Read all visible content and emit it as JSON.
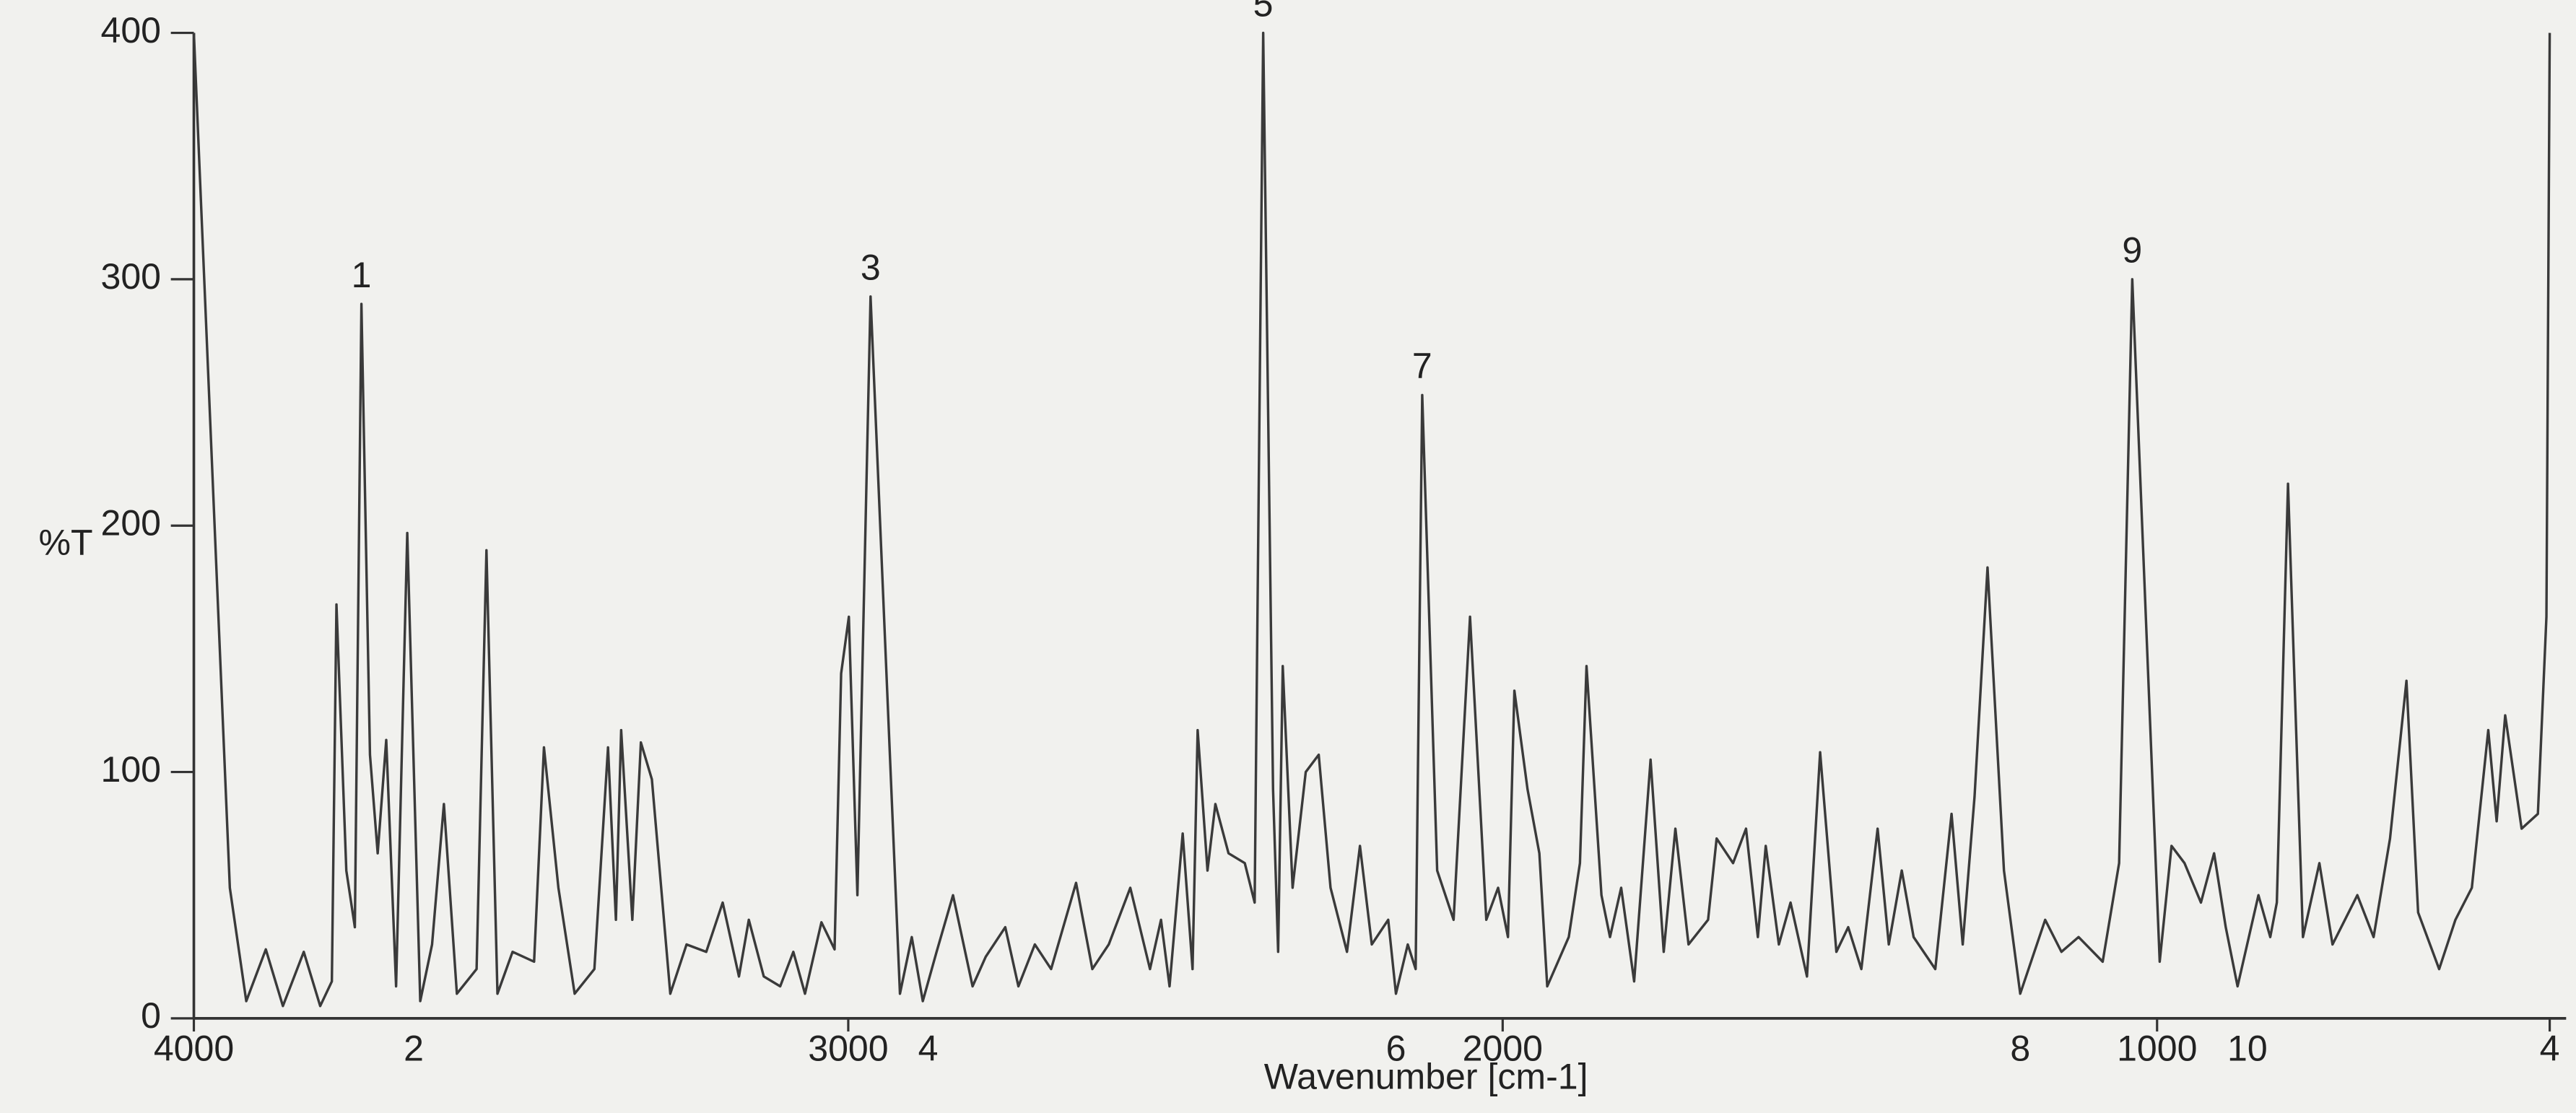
{
  "chart_data": {
    "type": "line",
    "ylabel": "%T",
    "xlabel": "Wavenumber [cm-1]",
    "xlim": [
      4000,
      400
    ],
    "ylim": [
      0,
      400
    ],
    "xticks": [
      4000,
      3000,
      2000,
      1000,
      {
        "value": 400,
        "label": "4"
      }
    ],
    "yticks": [
      0,
      100,
      200,
      300,
      400
    ],
    "color": "#3a3a3a",
    "x": [
      4000,
      3945,
      3920,
      3890,
      3864,
      3832,
      3807,
      3789,
      3782,
      3767,
      3754,
      3744,
      3731,
      3719,
      3706,
      3691,
      3674,
      3654,
      3636,
      3618,
      3598,
      3568,
      3553,
      3536,
      3513,
      3480,
      3465,
      3443,
      3418,
      3388,
      3367,
      3355,
      3347,
      3330,
      3317,
      3300,
      3272,
      3247,
      3217,
      3192,
      3167,
      3152,
      3129,
      3104,
      3084,
      3066,
      3041,
      3021,
      3011,
      2999,
      2986,
      2966,
      2921,
      2903,
      2886,
      2865,
      2840,
      2810,
      2790,
      2760,
      2740,
      2715,
      2690,
      2652,
      2627,
      2602,
      2569,
      2539,
      2522,
      2509,
      2489,
      2474,
      2466,
      2451,
      2439,
      2419,
      2394,
      2379,
      2366,
      2351,
      2343,
      2336,
      2321,
      2301,
      2281,
      2263,
      2238,
      2218,
      2200,
      2175,
      2163,
      2145,
      2133,
      2123,
      2100,
      2075,
      2050,
      2025,
      2007,
      1992,
      1982,
      1962,
      1944,
      1932,
      1899,
      1882,
      1872,
      1849,
      1836,
      1819,
      1799,
      1774,
      1754,
      1736,
      1716,
      1686,
      1673,
      1648,
      1628,
      1610,
      1598,
      1578,
      1560,
      1535,
      1515,
      1490,
      1472,
      1452,
      1427,
      1410,
      1390,
      1372,
      1339,
      1314,
      1297,
      1279,
      1259,
      1234,
      1209,
      1171,
      1146,
      1120,
      1083,
      1058,
      1038,
      996,
      978,
      958,
      933,
      913,
      895,
      877,
      845,
      827,
      817,
      800,
      777,
      752,
      732,
      694,
      669,
      644,
      619,
      601,
      569,
      544,
      519,
      494,
      481,
      468,
      443,
      418,
      405,
      400
    ],
    "values": [
      400,
      53,
      7,
      28,
      5,
      27,
      5,
      15,
      168,
      60,
      37,
      290,
      107,
      67,
      113,
      13,
      197,
      7,
      30,
      87,
      10,
      20,
      190,
      10,
      27,
      23,
      110,
      53,
      10,
      20,
      110,
      40,
      117,
      40,
      112,
      97,
      10,
      30,
      27,
      47,
      17,
      40,
      17,
      13,
      27,
      10,
      39,
      28,
      140,
      163,
      50,
      293,
      10,
      33,
      7,
      27,
      50,
      13,
      25,
      37,
      13,
      30,
      20,
      55,
      20,
      30,
      53,
      20,
      40,
      13,
      75,
      20,
      117,
      60,
      87,
      67,
      63,
      47,
      400,
      93,
      27,
      143,
      53,
      100,
      107,
      53,
      27,
      70,
      30,
      40,
      10,
      30,
      20,
      253,
      60,
      40,
      163,
      40,
      53,
      33,
      133,
      93,
      67,
      13,
      33,
      63,
      143,
      50,
      33,
      53,
      15,
      105,
      27,
      77,
      30,
      40,
      73,
      63,
      77,
      33,
      70,
      30,
      47,
      17,
      108,
      27,
      37,
      20,
      77,
      30,
      60,
      33,
      20,
      83,
      30,
      90,
      183,
      60,
      10,
      40,
      27,
      33,
      23,
      63,
      300,
      23,
      70,
      63,
      47,
      67,
      37,
      13,
      50,
      33,
      47,
      217,
      33,
      63,
      30,
      50,
      33,
      73,
      137,
      43,
      20,
      40,
      53,
      117,
      80,
      123,
      77,
      83,
      163,
      400
    ],
    "annotations": [
      {
        "text": "1",
        "x": 3744,
        "y": 290
      },
      {
        "text": "2",
        "x": 3664,
        "y": 0
      },
      {
        "text": "3",
        "x": 2966,
        "y": 293
      },
      {
        "text": "4",
        "x": 2878,
        "y": 0
      },
      {
        "text": "5",
        "x": 2366,
        "y": 400
      },
      {
        "text": "6",
        "x": 2163,
        "y": 0
      },
      {
        "text": "7",
        "x": 2123,
        "y": 253
      },
      {
        "text": "8",
        "x": 1209,
        "y": 0
      },
      {
        "text": "9",
        "x": 1038,
        "y": 300
      },
      {
        "text": "10",
        "x": 862,
        "y": 0
      }
    ]
  }
}
